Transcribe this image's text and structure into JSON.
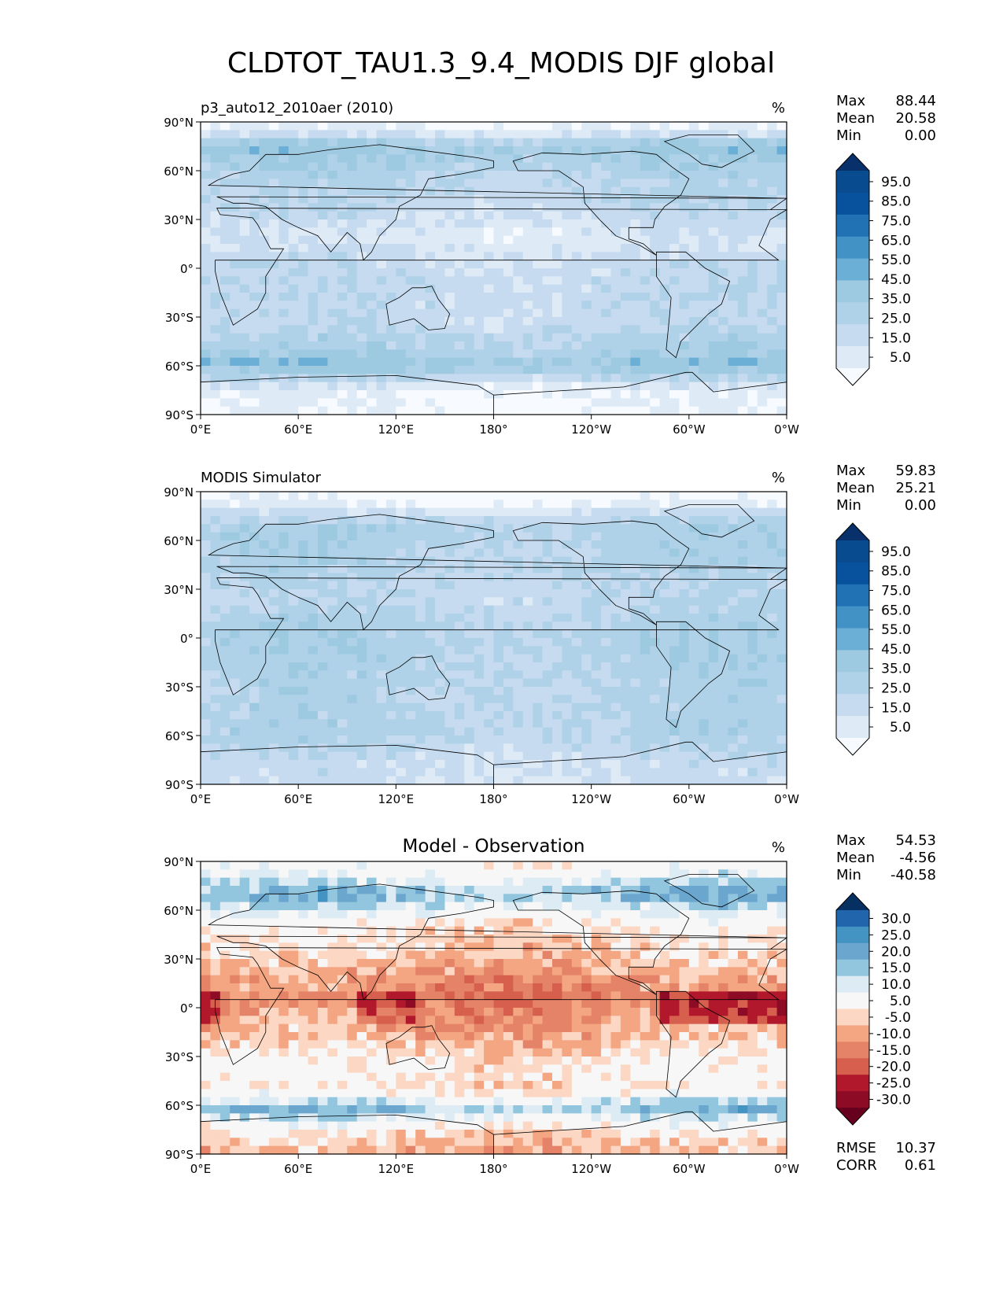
{
  "title": "CLDTOT_TAU1.3_9.4_MODIS DJF global",
  "axes": {
    "lat_ticks": [
      "90°N",
      "60°N",
      "30°N",
      "0°",
      "30°S",
      "60°S",
      "90°S"
    ],
    "lon_ticks": [
      "0°E",
      "60°E",
      "120°E",
      "180°",
      "120°W",
      "60°W",
      "0°W"
    ]
  },
  "colors": {
    "blues": [
      "#f7fbff",
      "#deebf7",
      "#c6dbef",
      "#b0d2e8",
      "#9ecae1",
      "#6baed6",
      "#4292c6",
      "#2171b5",
      "#08519c",
      "#084b8e",
      "#08306b"
    ],
    "diff": [
      "#67001f",
      "#8e0b25",
      "#b2182b",
      "#d6604d",
      "#e58368",
      "#f4a582",
      "#fbd7c4",
      "#f7f7f7",
      "#ddecf4",
      "#92c5de",
      "#6aa6cd",
      "#4393c3",
      "#2166ac",
      "#053061"
    ],
    "land_outline": "#000000"
  },
  "chart_data": [
    {
      "type": "heatmap",
      "id": "panel1",
      "left_title": "p3_auto12_2010aer (2010)",
      "center_title": "",
      "units": "%",
      "stats": [
        {
          "label": "Max",
          "value": "88.44"
        },
        {
          "label": "Mean",
          "value": "20.58"
        },
        {
          "label": "Min",
          "value": "0.00"
        }
      ],
      "colorbar_labels": [
        "95.0",
        "85.0",
        "75.0",
        "65.0",
        "55.0",
        "45.0",
        "35.0",
        "25.0",
        "15.0",
        "5.0"
      ],
      "colorbar_palette": "blues",
      "xlim": [
        0,
        360
      ],
      "ylim": [
        -90,
        90
      ],
      "field_description_zonal": [
        {
          "lat": 85,
          "value": 5
        },
        {
          "lat": 75,
          "value": 40
        },
        {
          "lat": 60,
          "value": 28
        },
        {
          "lat": 40,
          "value": 22
        },
        {
          "lat": 20,
          "value": 12
        },
        {
          "lat": 0,
          "value": 20
        },
        {
          "lat": -15,
          "value": 22
        },
        {
          "lat": -30,
          "value": 20
        },
        {
          "lat": -50,
          "value": 30
        },
        {
          "lat": -60,
          "value": 42
        },
        {
          "lat": -75,
          "value": 5
        },
        {
          "lat": -88,
          "value": 2
        }
      ]
    },
    {
      "type": "heatmap",
      "id": "panel2",
      "left_title": "MODIS Simulator",
      "center_title": "",
      "units": "%",
      "stats": [
        {
          "label": "Max",
          "value": "59.83"
        },
        {
          "label": "Mean",
          "value": "25.21"
        },
        {
          "label": "Min",
          "value": "0.00"
        }
      ],
      "colorbar_labels": [
        "95.0",
        "85.0",
        "75.0",
        "65.0",
        "55.0",
        "45.0",
        "35.0",
        "25.0",
        "15.0",
        "5.0"
      ],
      "colorbar_palette": "blues",
      "xlim": [
        0,
        360
      ],
      "ylim": [
        -90,
        90
      ],
      "field_description_zonal": [
        {
          "lat": 85,
          "value": 0
        },
        {
          "lat": 70,
          "value": 30
        },
        {
          "lat": 50,
          "value": 28
        },
        {
          "lat": 30,
          "value": 22
        },
        {
          "lat": 10,
          "value": 28
        },
        {
          "lat": 0,
          "value": 30
        },
        {
          "lat": -20,
          "value": 28
        },
        {
          "lat": -40,
          "value": 26
        },
        {
          "lat": -60,
          "value": 28
        },
        {
          "lat": -75,
          "value": 18
        },
        {
          "lat": -88,
          "value": 15
        }
      ]
    },
    {
      "type": "heatmap",
      "id": "panel3",
      "left_title": "",
      "center_title": "Model - Observation",
      "units": "%",
      "stats": [
        {
          "label": "Max",
          "value": "54.53"
        },
        {
          "label": "Mean",
          "value": "-4.56"
        },
        {
          "label": "Min",
          "value": "-40.58"
        }
      ],
      "colorbar_labels": [
        "30.0",
        "25.0",
        "20.0",
        "15.0",
        "10.0",
        "5.0",
        "-5.0",
        "-10.0",
        "-15.0",
        "-20.0",
        "-25.0",
        "-30.0"
      ],
      "colorbar_palette": "diff",
      "extra_stats": [
        {
          "label": "RMSE",
          "value": "10.37"
        },
        {
          "label": "CORR",
          "value": "0.61"
        }
      ],
      "xlim": [
        0,
        360
      ],
      "ylim": [
        -90,
        90
      ],
      "field_description_zonal": [
        {
          "lat": 85,
          "value": 0
        },
        {
          "lat": 70,
          "value": 15
        },
        {
          "lat": 50,
          "value": -5
        },
        {
          "lat": 30,
          "value": -10
        },
        {
          "lat": 5,
          "value": -18
        },
        {
          "lat": 0,
          "value": -15
        },
        {
          "lat": -15,
          "value": -12
        },
        {
          "lat": -35,
          "value": -3
        },
        {
          "lat": -50,
          "value": -6
        },
        {
          "lat": -62,
          "value": 14
        },
        {
          "lat": -75,
          "value": -5
        },
        {
          "lat": -88,
          "value": -12
        }
      ]
    }
  ]
}
